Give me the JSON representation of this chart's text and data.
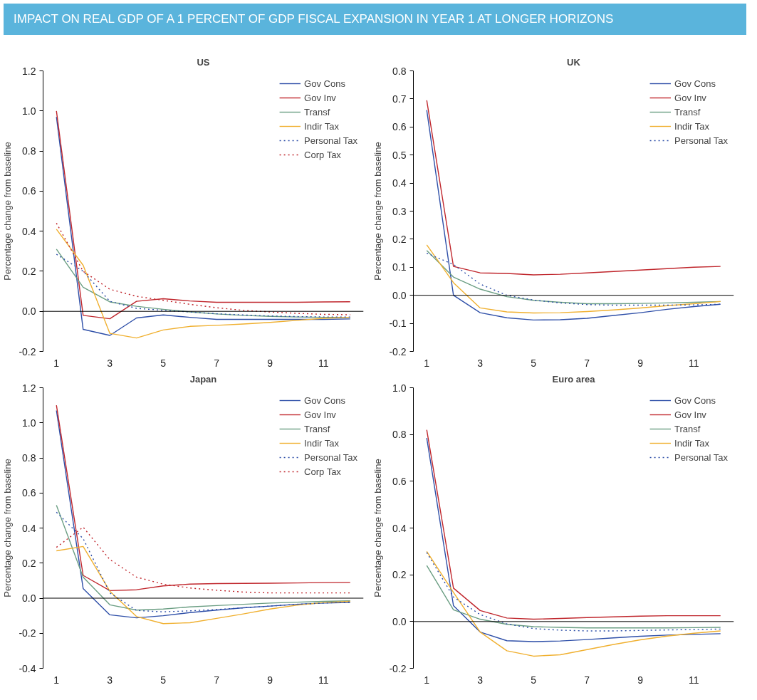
{
  "chart_data": [
    {
      "type": "other",
      "title": "IMPACT ON REAL GDP OF A 1 PERCENT OF GDP FISCAL EXPANSION IN YEAR 1 AT LONGER HORIZONS",
      "color": "#5ab4dc"
    },
    {
      "type": "line",
      "title": "US",
      "ylabel": "Percentage change from baseline",
      "x": [
        1,
        2,
        3,
        4,
        5,
        6,
        7,
        8,
        9,
        10,
        11,
        12
      ],
      "xlim": [
        0.5,
        12.5
      ],
      "xticks": [
        1,
        3,
        5,
        7,
        9,
        11
      ],
      "ylim": [
        -0.2,
        1.2
      ],
      "yticks": [
        {
          "value": -0.2,
          "label": "-0.2"
        },
        {
          "value": 0,
          "label": "0.0"
        },
        {
          "value": 0.2,
          "label": "0.2"
        },
        {
          "value": 0.4,
          "label": "0.4"
        },
        {
          "value": 0.6,
          "label": "0.6"
        },
        {
          "value": 0.8,
          "label": "0.8"
        },
        {
          "value": 1.0,
          "label": "1.0"
        },
        {
          "value": 1.2,
          "label": "1.2"
        }
      ],
      "grid": false,
      "legend": "top right",
      "ref_lines": [
        {
          "axis": "y",
          "value": 0,
          "color": "#000000"
        }
      ],
      "series": [
        {
          "name": "Gov Cons",
          "color": "#2e4fa8",
          "values": [
            0.97,
            -0.09,
            -0.12,
            -0.033,
            -0.018,
            -0.03,
            -0.04,
            -0.04,
            -0.04,
            -0.04,
            -0.04,
            -0.038
          ]
        },
        {
          "name": "Gov Inv",
          "color": "#c0272d",
          "values": [
            1.0,
            -0.02,
            -0.037,
            0.05,
            0.063,
            0.052,
            0.045,
            0.045,
            0.045,
            0.045,
            0.047,
            0.048
          ]
        },
        {
          "name": "Transf",
          "color": "#6b9e83",
          "values": [
            0.31,
            0.12,
            0.047,
            0.025,
            0.01,
            -0.003,
            -0.013,
            -0.02,
            -0.025,
            -0.028,
            -0.03,
            -0.03
          ]
        },
        {
          "name": "Indir Tax",
          "color": "#f0b030",
          "values": [
            0.41,
            0.23,
            -0.11,
            -0.133,
            -0.093,
            -0.075,
            -0.07,
            -0.063,
            -0.055,
            -0.045,
            -0.035,
            -0.03
          ]
        },
        {
          "name": "Personal Tax",
          "color": "#2e4fa8",
          "line_style": "dotted",
          "values": [
            0.285,
            0.2,
            0.05,
            0.015,
            0.005,
            -0.003,
            -0.012,
            -0.018,
            -0.023,
            -0.026,
            -0.028,
            -0.028
          ]
        },
        {
          "name": "Corp Tax",
          "color": "#c0272d",
          "line_style": "dotted",
          "values": [
            0.44,
            0.2,
            0.11,
            0.075,
            0.055,
            0.035,
            0.018,
            0.005,
            -0.003,
            -0.01,
            -0.015,
            -0.017
          ]
        }
      ]
    },
    {
      "type": "line",
      "title": "UK",
      "ylabel": "Percentage change from baseline",
      "x": [
        1,
        2,
        3,
        4,
        5,
        6,
        7,
        8,
        9,
        10,
        11,
        12
      ],
      "xlim": [
        0.5,
        12.5
      ],
      "xticks": [
        1,
        3,
        5,
        7,
        9,
        11
      ],
      "ylim": [
        -0.2,
        0.8
      ],
      "yticks": [
        {
          "value": -0.2,
          "label": "-0.2"
        },
        {
          "value": -0.1,
          "label": "-0.1"
        },
        {
          "value": 0,
          "label": "0.0"
        },
        {
          "value": 0.1,
          "label": "0.1"
        },
        {
          "value": 0.2,
          "label": "0.2"
        },
        {
          "value": 0.3,
          "label": "0.3"
        },
        {
          "value": 0.4,
          "label": "0.4"
        },
        {
          "value": 0.5,
          "label": "0.5"
        },
        {
          "value": 0.6,
          "label": "0.6"
        },
        {
          "value": 0.7,
          "label": "0.7"
        },
        {
          "value": 0.8,
          "label": "0.8"
        }
      ],
      "grid": false,
      "legend": "top right",
      "ref_lines": [
        {
          "axis": "y",
          "value": 0,
          "color": "#000000"
        }
      ],
      "series": [
        {
          "name": "Gov Cons",
          "color": "#2e4fa8",
          "values": [
            0.66,
            0.0,
            -0.062,
            -0.08,
            -0.088,
            -0.087,
            -0.082,
            -0.072,
            -0.062,
            -0.05,
            -0.04,
            -0.032
          ]
        },
        {
          "name": "Gov Inv",
          "color": "#c0272d",
          "values": [
            0.695,
            0.103,
            0.08,
            0.078,
            0.073,
            0.075,
            0.08,
            0.085,
            0.09,
            0.095,
            0.1,
            0.103
          ]
        },
        {
          "name": "Transf",
          "color": "#6b9e83",
          "values": [
            0.16,
            0.065,
            0.022,
            -0.005,
            -0.018,
            -0.025,
            -0.03,
            -0.03,
            -0.029,
            -0.027,
            -0.025,
            -0.022
          ]
        },
        {
          "name": "Indir Tax",
          "color": "#f0b030",
          "values": [
            0.18,
            0.045,
            -0.045,
            -0.059,
            -0.063,
            -0.062,
            -0.058,
            -0.052,
            -0.045,
            -0.037,
            -0.03,
            -0.022
          ]
        },
        {
          "name": "Personal Tax",
          "color": "#2e4fa8",
          "line_style": "dotted",
          "values": [
            0.15,
            0.11,
            0.04,
            0.0,
            -0.017,
            -0.027,
            -0.033,
            -0.035,
            -0.035,
            -0.035,
            -0.034,
            -0.032
          ]
        }
      ]
    },
    {
      "type": "line",
      "title": "Japan",
      "ylabel": "Percentage change from baseline",
      "x": [
        1,
        2,
        3,
        4,
        5,
        6,
        7,
        8,
        9,
        10,
        11,
        12
      ],
      "xlim": [
        0.5,
        12.5
      ],
      "xticks": [
        1,
        3,
        5,
        7,
        9,
        11
      ],
      "ylim": [
        -0.4,
        1.2
      ],
      "yticks": [
        {
          "value": -0.4,
          "label": "-0.4"
        },
        {
          "value": -0.2,
          "label": "-0.2"
        },
        {
          "value": 0,
          "label": "0.0"
        },
        {
          "value": 0.2,
          "label": "0.2"
        },
        {
          "value": 0.4,
          "label": "0.4"
        },
        {
          "value": 0.6,
          "label": "0.6"
        },
        {
          "value": 0.8,
          "label": "0.8"
        },
        {
          "value": 1.0,
          "label": "1.0"
        },
        {
          "value": 1.2,
          "label": "1.2"
        }
      ],
      "grid": false,
      "legend": "top right",
      "ref_lines": [
        {
          "axis": "y",
          "value": 0,
          "color": "#000000"
        }
      ],
      "series": [
        {
          "name": "Gov Cons",
          "color": "#2e4fa8",
          "values": [
            1.07,
            0.055,
            -0.095,
            -0.112,
            -0.1,
            -0.082,
            -0.068,
            -0.055,
            -0.045,
            -0.035,
            -0.028,
            -0.025
          ]
        },
        {
          "name": "Gov Inv",
          "color": "#c0272d",
          "values": [
            1.1,
            0.13,
            0.043,
            0.048,
            0.07,
            0.08,
            0.083,
            0.084,
            0.085,
            0.087,
            0.089,
            0.09
          ]
        },
        {
          "name": "Transf",
          "color": "#6b9e83",
          "values": [
            0.53,
            0.12,
            -0.038,
            -0.068,
            -0.062,
            -0.05,
            -0.042,
            -0.035,
            -0.028,
            -0.023,
            -0.018,
            -0.015
          ]
        },
        {
          "name": "Indir Tax",
          "color": "#f0b030",
          "values": [
            0.27,
            0.295,
            0.04,
            -0.105,
            -0.145,
            -0.14,
            -0.115,
            -0.09,
            -0.062,
            -0.04,
            -0.025,
            -0.018
          ]
        },
        {
          "name": "Personal Tax",
          "color": "#2e4fa8",
          "line_style": "dotted",
          "values": [
            0.49,
            0.34,
            0.03,
            -0.07,
            -0.078,
            -0.072,
            -0.065,
            -0.055,
            -0.045,
            -0.035,
            -0.028,
            -0.022
          ]
        },
        {
          "name": "Corp Tax",
          "color": "#c0272d",
          "line_style": "dotted",
          "values": [
            0.29,
            0.405,
            0.22,
            0.12,
            0.08,
            0.058,
            0.045,
            0.035,
            0.03,
            0.03,
            0.03,
            0.03
          ]
        }
      ]
    },
    {
      "type": "line",
      "title": "Euro area",
      "ylabel": "Percentage change from baseline",
      "x": [
        1,
        2,
        3,
        4,
        5,
        6,
        7,
        8,
        9,
        10,
        11,
        12
      ],
      "xlim": [
        0.5,
        12.5
      ],
      "xticks": [
        1,
        3,
        5,
        7,
        9,
        11
      ],
      "ylim": [
        -0.2,
        1.0
      ],
      "yticks": [
        {
          "value": -0.2,
          "label": "-0.2"
        },
        {
          "value": 0,
          "label": "0.0"
        },
        {
          "value": 0.2,
          "label": "0.2"
        },
        {
          "value": 0.4,
          "label": "0.4"
        },
        {
          "value": 0.6,
          "label": "0.6"
        },
        {
          "value": 0.8,
          "label": "0.8"
        },
        {
          "value": 1.0,
          "label": "1.0"
        }
      ],
      "grid": false,
      "legend": "top right",
      "ref_lines": [
        {
          "axis": "y",
          "value": 0,
          "color": "#000000"
        }
      ],
      "series": [
        {
          "name": "Gov Cons",
          "color": "#2e4fa8",
          "values": [
            0.785,
            0.068,
            -0.045,
            -0.082,
            -0.086,
            -0.083,
            -0.077,
            -0.07,
            -0.063,
            -0.058,
            -0.055,
            -0.052
          ]
        },
        {
          "name": "Gov Inv",
          "color": "#c0272d",
          "values": [
            0.82,
            0.143,
            0.047,
            0.015,
            0.01,
            0.013,
            0.017,
            0.02,
            0.023,
            0.025,
            0.025,
            0.025
          ]
        },
        {
          "name": "Transf",
          "color": "#6b9e83",
          "values": [
            0.24,
            0.05,
            0.01,
            -0.012,
            -0.022,
            -0.025,
            -0.027,
            -0.027,
            -0.027,
            -0.027,
            -0.026,
            -0.025
          ]
        },
        {
          "name": "Indir Tax",
          "color": "#f0b030",
          "values": [
            0.3,
            0.125,
            -0.045,
            -0.125,
            -0.148,
            -0.142,
            -0.12,
            -0.098,
            -0.078,
            -0.062,
            -0.05,
            -0.04
          ]
        },
        {
          "name": "Personal Tax",
          "color": "#2e4fa8",
          "line_style": "dotted",
          "values": [
            0.295,
            0.105,
            0.03,
            -0.01,
            -0.03,
            -0.037,
            -0.04,
            -0.04,
            -0.038,
            -0.036,
            -0.034,
            -0.032
          ]
        }
      ]
    }
  ]
}
